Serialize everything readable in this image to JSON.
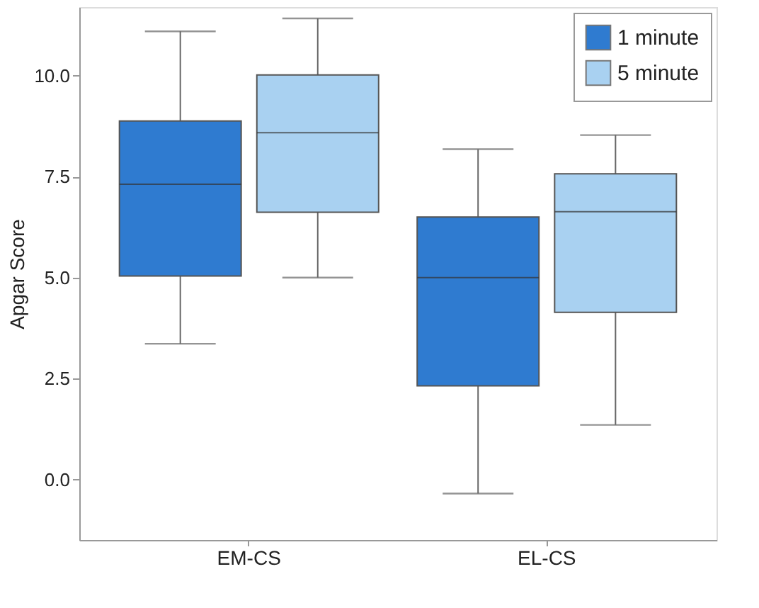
{
  "chart_data": {
    "type": "box",
    "ylabel": "Apgar Score",
    "categories": [
      "EM-CS",
      "EL-CS"
    ],
    "series": [
      {
        "name": "1 minute",
        "color": "#2f7bd0",
        "boxes": [
          {
            "low": 3.36,
            "q1": 5.04,
            "median": 7.31,
            "q3": 8.88,
            "high": 11.1
          },
          {
            "low": -0.35,
            "q1": 2.32,
            "median": 5.0,
            "q3": 6.5,
            "high": 8.18
          }
        ]
      },
      {
        "name": "5 minute",
        "color": "#a9d1f1",
        "boxes": [
          {
            "low": 5.0,
            "q1": 6.62,
            "median": 8.59,
            "q3": 10.02,
            "high": 11.42
          },
          {
            "low": 1.35,
            "q1": 4.14,
            "median": 6.63,
            "q3": 7.57,
            "high": 8.53
          }
        ]
      }
    ],
    "ylim": [
      -1.5,
      11.7
    ],
    "yticks": [
      {
        "value": 0,
        "label": "0.0"
      },
      {
        "value": 2.5,
        "label": "2.5"
      },
      {
        "value": 5,
        "label": "5.0"
      },
      {
        "value": 7.5,
        "label": "7.5"
      },
      {
        "value": 10,
        "label": "10.0"
      }
    ],
    "grid": false,
    "legend": "top right"
  }
}
